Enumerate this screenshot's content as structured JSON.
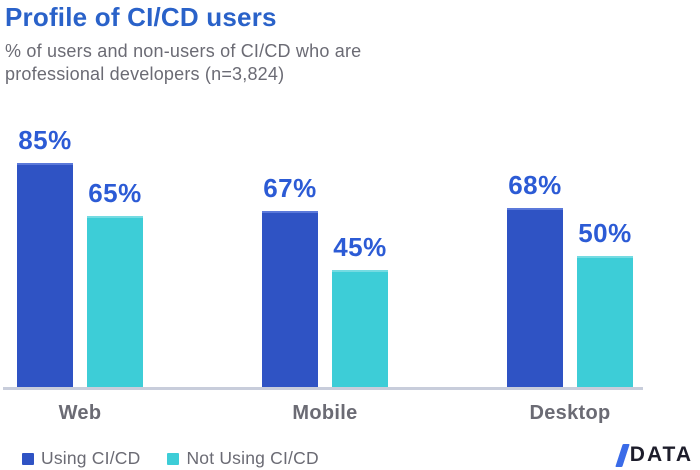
{
  "header": {
    "title": "Profile of CI/CD users",
    "subtitle_lines": [
      "% of users and non-users of CI/CD who are",
      "professional developers (n=3,824)"
    ]
  },
  "chart_data": {
    "type": "bar",
    "title": "Profile of CI/CD users",
    "subtitle": "% of users and non-users of CI/CD who are professional developers (n=3,824)",
    "categories": [
      "Web",
      "Mobile",
      "Desktop"
    ],
    "series": [
      {
        "name": "Using CI/CD",
        "values": [
          85,
          67,
          68
        ],
        "color": "#2F53C4",
        "highlight": "#5B79DA"
      },
      {
        "name": "Not Using CI/CD",
        "values": [
          65,
          45,
          50
        ],
        "color": "#3DCDD7",
        "highlight": "#74DBE2"
      }
    ],
    "value_suffix": "%",
    "ylim": [
      0,
      100
    ],
    "grid": false,
    "legend_position": "bottom-left",
    "colors": {
      "title": "#2A62C9",
      "value_labels": "#2C5BD5",
      "category_labels": "#6B6B74",
      "axis_line": "#C8CDDB"
    }
  },
  "legend": {
    "items": [
      {
        "label": "Using CI/CD",
        "color": "#2F53C4"
      },
      {
        "label": "Not Using CI/CD",
        "color": "#3DCDD7"
      }
    ]
  },
  "branding": {
    "logo_slash": "/",
    "logo_text": "DATA",
    "slash_color": "#3A6BE8",
    "text_color": "#1D1D2B"
  }
}
